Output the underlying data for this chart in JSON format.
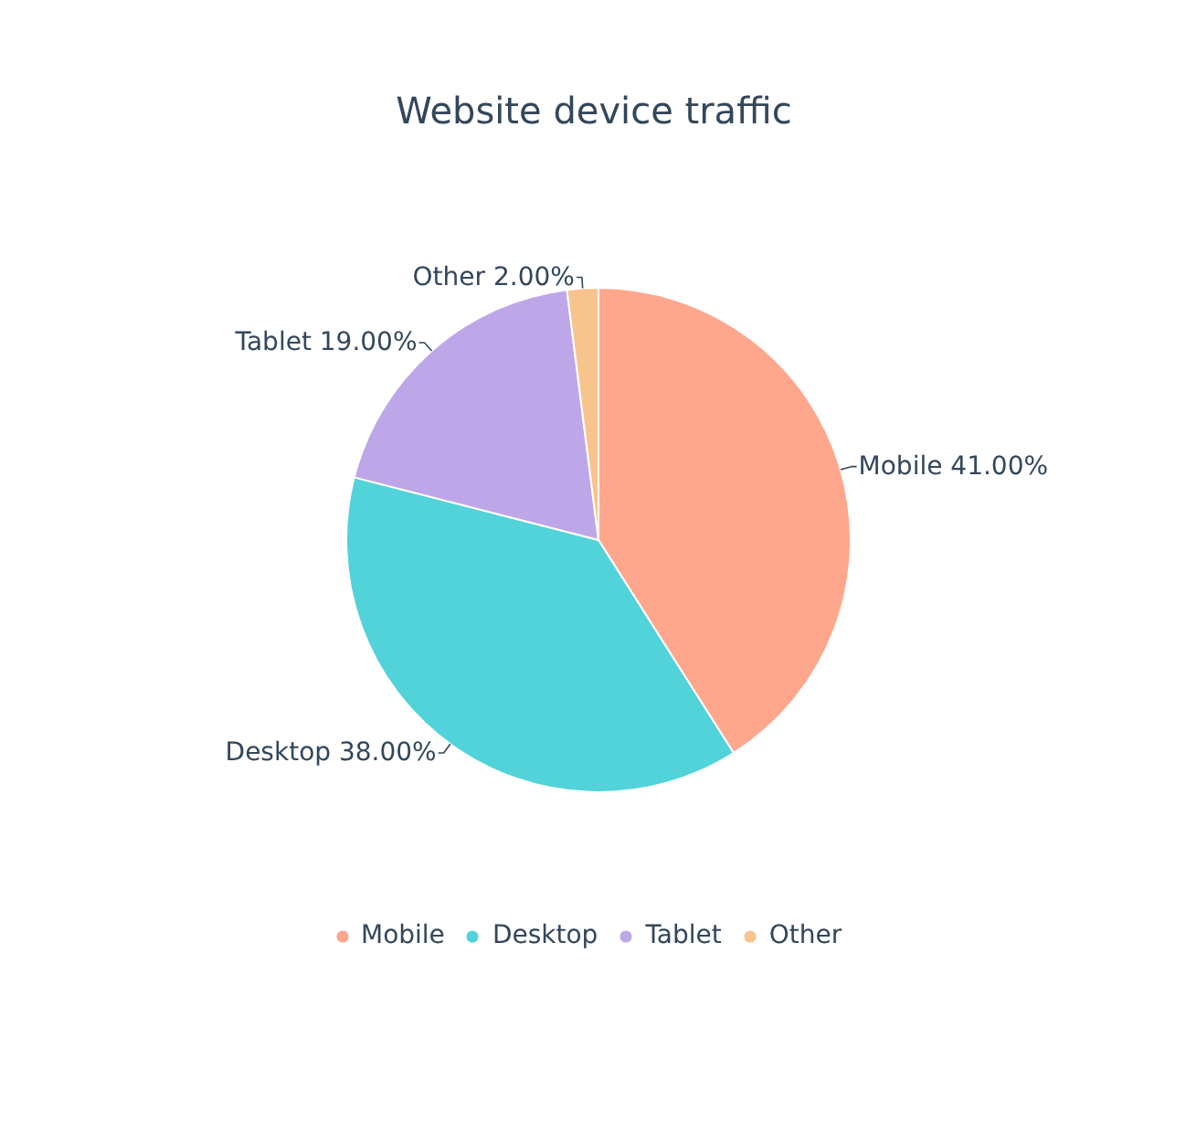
{
  "chart_data": {
    "type": "pie",
    "title": "Website device traffic",
    "categories": [
      "Mobile",
      "Desktop",
      "Tablet",
      "Other"
    ],
    "values": [
      41,
      38,
      19,
      2
    ],
    "value_labels": [
      "41.00%",
      "38.00%",
      "19.00%",
      "2.00%"
    ],
    "colors": [
      "#ffa78c",
      "#51d3d9",
      "#bea7e8",
      "#f7c48d"
    ],
    "legend": "bottom"
  }
}
